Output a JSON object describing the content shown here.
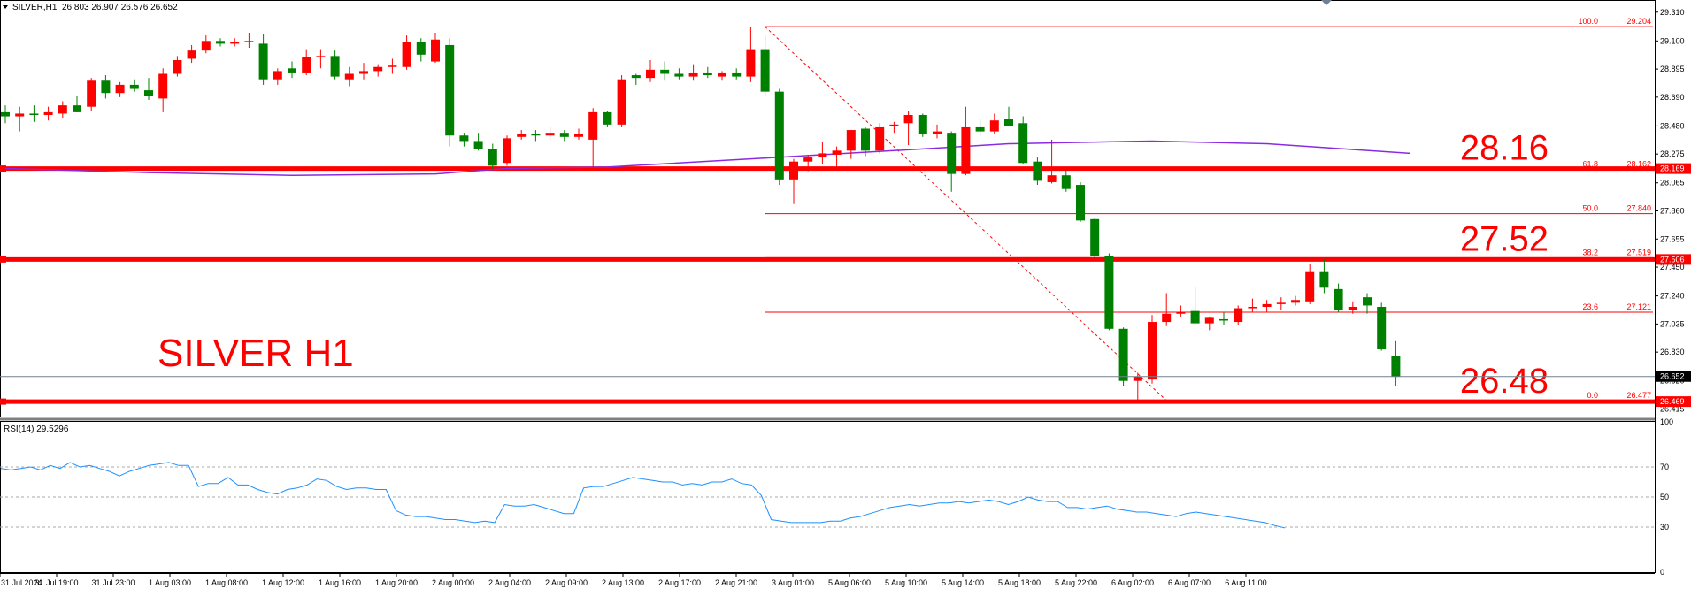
{
  "header": {
    "symbol_timeframe": "SILVER,H1",
    "ohlc": "26.803 26.907 26.576 26.652"
  },
  "watermark": "SILVER H1",
  "colors": {
    "bull": "#ff0000",
    "bear": "#008000",
    "ma": "#8a2be2",
    "level": "#ff0000",
    "fib": "#ff0000",
    "rsi": "#1e90ff",
    "current_price_line": "#708090",
    "axis_text": "#000000"
  },
  "chart_data": [
    {
      "type": "candlestick",
      "title": "SILVER,H1",
      "ylim": [
        26.36,
        29.36
      ],
      "y_ticks": [
        29.31,
        29.1,
        28.895,
        28.69,
        28.48,
        28.275,
        28.065,
        27.86,
        27.655,
        27.45,
        27.24,
        27.035,
        26.83,
        26.62,
        26.415
      ],
      "time_labels": [
        "31 Jul 2024",
        "31 Jul 19:00",
        "31 Jul 23:00",
        "1 Aug 03:00",
        "1 Aug 08:00",
        "1 Aug 12:00",
        "1 Aug 16:00",
        "1 Aug 20:00",
        "2 Aug 00:00",
        "2 Aug 04:00",
        "2 Aug 09:00",
        "2 Aug 13:00",
        "2 Aug 17:00",
        "2 Aug 21:00",
        "3 Aug 01:00",
        "5 Aug 06:00",
        "5 Aug 10:00",
        "5 Aug 14:00",
        "5 Aug 18:00",
        "5 Aug 22:00",
        "6 Aug 02:00",
        "6 Aug 07:00",
        "6 Aug 11:00"
      ],
      "candles": [
        {
          "o": 28.58,
          "h": 28.63,
          "l": 28.5,
          "c": 28.55
        },
        {
          "o": 28.55,
          "h": 28.62,
          "l": 28.44,
          "c": 28.57
        },
        {
          "o": 28.57,
          "h": 28.63,
          "l": 28.51,
          "c": 28.56
        },
        {
          "o": 28.56,
          "h": 28.62,
          "l": 28.52,
          "c": 28.58
        },
        {
          "o": 28.57,
          "h": 28.66,
          "l": 28.54,
          "c": 28.63
        },
        {
          "o": 28.63,
          "h": 28.7,
          "l": 28.58,
          "c": 28.58
        },
        {
          "o": 28.62,
          "h": 28.83,
          "l": 28.59,
          "c": 28.81
        },
        {
          "o": 28.81,
          "h": 28.85,
          "l": 28.68,
          "c": 28.72
        },
        {
          "o": 28.72,
          "h": 28.8,
          "l": 28.69,
          "c": 28.78
        },
        {
          "o": 28.78,
          "h": 28.82,
          "l": 28.73,
          "c": 28.75
        },
        {
          "o": 28.74,
          "h": 28.83,
          "l": 28.67,
          "c": 28.7
        },
        {
          "o": 28.68,
          "h": 28.9,
          "l": 28.58,
          "c": 28.86
        },
        {
          "o": 28.86,
          "h": 28.99,
          "l": 28.84,
          "c": 28.96
        },
        {
          "o": 28.97,
          "h": 29.07,
          "l": 28.94,
          "c": 29.03
        },
        {
          "o": 29.03,
          "h": 29.14,
          "l": 29.01,
          "c": 29.1
        },
        {
          "o": 29.1,
          "h": 29.12,
          "l": 29.06,
          "c": 29.08
        },
        {
          "o": 29.08,
          "h": 29.12,
          "l": 29.06,
          "c": 29.09
        },
        {
          "o": 29.1,
          "h": 29.16,
          "l": 29.05,
          "c": 29.1
        },
        {
          "o": 29.08,
          "h": 29.15,
          "l": 28.78,
          "c": 28.82
        },
        {
          "o": 28.82,
          "h": 28.9,
          "l": 28.78,
          "c": 28.88
        },
        {
          "o": 28.9,
          "h": 28.95,
          "l": 28.83,
          "c": 28.87
        },
        {
          "o": 28.87,
          "h": 29.04,
          "l": 28.85,
          "c": 28.98
        },
        {
          "o": 28.98,
          "h": 29.04,
          "l": 28.9,
          "c": 28.99
        },
        {
          "o": 28.99,
          "h": 29.03,
          "l": 28.82,
          "c": 28.84
        },
        {
          "o": 28.82,
          "h": 28.91,
          "l": 28.77,
          "c": 28.86
        },
        {
          "o": 28.86,
          "h": 28.94,
          "l": 28.82,
          "c": 28.88
        },
        {
          "o": 28.88,
          "h": 28.93,
          "l": 28.84,
          "c": 28.91
        },
        {
          "o": 28.91,
          "h": 28.97,
          "l": 28.86,
          "c": 28.92
        },
        {
          "o": 28.91,
          "h": 29.14,
          "l": 28.89,
          "c": 29.09
        },
        {
          "o": 29.09,
          "h": 29.12,
          "l": 28.95,
          "c": 29.0
        },
        {
          "o": 28.95,
          "h": 29.16,
          "l": 28.94,
          "c": 29.11
        },
        {
          "o": 29.07,
          "h": 29.12,
          "l": 28.33,
          "c": 28.41
        },
        {
          "o": 28.41,
          "h": 28.43,
          "l": 28.33,
          "c": 28.37
        },
        {
          "o": 28.37,
          "h": 28.43,
          "l": 28.3,
          "c": 28.31
        },
        {
          "o": 28.31,
          "h": 28.35,
          "l": 28.16,
          "c": 28.19
        },
        {
          "o": 28.21,
          "h": 28.41,
          "l": 28.19,
          "c": 28.39
        },
        {
          "o": 28.4,
          "h": 28.45,
          "l": 28.38,
          "c": 28.42
        },
        {
          "o": 28.42,
          "h": 28.45,
          "l": 28.37,
          "c": 28.41
        },
        {
          "o": 28.41,
          "h": 28.47,
          "l": 28.39,
          "c": 28.43
        },
        {
          "o": 28.43,
          "h": 28.45,
          "l": 28.37,
          "c": 28.4
        },
        {
          "o": 28.4,
          "h": 28.46,
          "l": 28.38,
          "c": 28.42
        },
        {
          "o": 28.38,
          "h": 28.61,
          "l": 28.17,
          "c": 28.58
        },
        {
          "o": 28.58,
          "h": 28.59,
          "l": 28.47,
          "c": 28.49
        },
        {
          "o": 28.49,
          "h": 28.85,
          "l": 28.47,
          "c": 28.82
        },
        {
          "o": 28.85,
          "h": 28.86,
          "l": 28.78,
          "c": 28.83
        },
        {
          "o": 28.83,
          "h": 28.96,
          "l": 28.8,
          "c": 28.89
        },
        {
          "o": 28.89,
          "h": 28.95,
          "l": 28.81,
          "c": 28.86
        },
        {
          "o": 28.86,
          "h": 28.9,
          "l": 28.82,
          "c": 28.84
        },
        {
          "o": 28.84,
          "h": 28.93,
          "l": 28.81,
          "c": 28.87
        },
        {
          "o": 28.87,
          "h": 28.91,
          "l": 28.83,
          "c": 28.85
        },
        {
          "o": 28.84,
          "h": 28.88,
          "l": 28.81,
          "c": 28.87
        },
        {
          "o": 28.87,
          "h": 28.9,
          "l": 28.82,
          "c": 28.84
        },
        {
          "o": 28.84,
          "h": 29.2,
          "l": 28.8,
          "c": 29.04
        },
        {
          "o": 29.04,
          "h": 29.14,
          "l": 28.7,
          "c": 28.73
        },
        {
          "o": 28.73,
          "h": 28.75,
          "l": 28.05,
          "c": 28.09
        },
        {
          "o": 28.09,
          "h": 28.24,
          "l": 27.91,
          "c": 28.22
        },
        {
          "o": 28.22,
          "h": 28.27,
          "l": 28.15,
          "c": 28.25
        },
        {
          "o": 28.25,
          "h": 28.36,
          "l": 28.2,
          "c": 28.28
        },
        {
          "o": 28.27,
          "h": 28.33,
          "l": 28.18,
          "c": 28.3
        },
        {
          "o": 28.3,
          "h": 28.43,
          "l": 28.24,
          "c": 28.45
        },
        {
          "o": 28.46,
          "h": 28.47,
          "l": 28.26,
          "c": 28.3
        },
        {
          "o": 28.3,
          "h": 28.5,
          "l": 28.28,
          "c": 28.47
        },
        {
          "o": 28.48,
          "h": 28.51,
          "l": 28.43,
          "c": 28.49
        },
        {
          "o": 28.5,
          "h": 28.59,
          "l": 28.34,
          "c": 28.56
        },
        {
          "o": 28.56,
          "h": 28.57,
          "l": 28.4,
          "c": 28.42
        },
        {
          "o": 28.42,
          "h": 28.49,
          "l": 28.39,
          "c": 28.44
        },
        {
          "o": 28.43,
          "h": 28.44,
          "l": 28.0,
          "c": 28.13
        },
        {
          "o": 28.13,
          "h": 28.62,
          "l": 28.12,
          "c": 28.47
        },
        {
          "o": 28.47,
          "h": 28.53,
          "l": 28.41,
          "c": 28.44
        },
        {
          "o": 28.44,
          "h": 28.57,
          "l": 28.42,
          "c": 28.52
        },
        {
          "o": 28.53,
          "h": 28.62,
          "l": 28.48,
          "c": 28.48
        },
        {
          "o": 28.5,
          "h": 28.55,
          "l": 28.2,
          "c": 28.21
        },
        {
          "o": 28.22,
          "h": 28.25,
          "l": 28.05,
          "c": 28.08
        },
        {
          "o": 28.07,
          "h": 28.38,
          "l": 28.06,
          "c": 28.12
        },
        {
          "o": 28.12,
          "h": 28.16,
          "l": 28.0,
          "c": 28.02
        },
        {
          "o": 28.05,
          "h": 28.07,
          "l": 27.78,
          "c": 27.79
        },
        {
          "o": 27.8,
          "h": 27.81,
          "l": 27.52,
          "c": 27.53
        },
        {
          "o": 27.53,
          "h": 27.55,
          "l": 26.99,
          "c": 27.0
        },
        {
          "o": 27.0,
          "h": 27.01,
          "l": 26.58,
          "c": 26.62
        },
        {
          "o": 26.62,
          "h": 26.68,
          "l": 26.48,
          "c": 26.65
        },
        {
          "o": 26.63,
          "h": 27.1,
          "l": 26.6,
          "c": 27.05
        },
        {
          "o": 27.05,
          "h": 27.26,
          "l": 27.02,
          "c": 27.11
        },
        {
          "o": 27.11,
          "h": 27.17,
          "l": 27.09,
          "c": 27.12
        },
        {
          "o": 27.13,
          "h": 27.31,
          "l": 27.05,
          "c": 27.04
        },
        {
          "o": 27.04,
          "h": 27.09,
          "l": 26.99,
          "c": 27.08
        },
        {
          "o": 27.07,
          "h": 27.12,
          "l": 27.03,
          "c": 27.06
        },
        {
          "o": 27.05,
          "h": 27.17,
          "l": 27.03,
          "c": 27.15
        },
        {
          "o": 27.15,
          "h": 27.22,
          "l": 27.12,
          "c": 27.16
        },
        {
          "o": 27.16,
          "h": 27.21,
          "l": 27.12,
          "c": 27.18
        },
        {
          "o": 27.18,
          "h": 27.23,
          "l": 27.14,
          "c": 27.19
        },
        {
          "o": 27.19,
          "h": 27.24,
          "l": 27.17,
          "c": 27.21
        },
        {
          "o": 27.2,
          "h": 27.47,
          "l": 27.18,
          "c": 27.42
        },
        {
          "o": 27.42,
          "h": 27.51,
          "l": 27.26,
          "c": 27.3
        },
        {
          "o": 27.29,
          "h": 27.33,
          "l": 27.12,
          "c": 27.14
        },
        {
          "o": 27.14,
          "h": 27.2,
          "l": 27.11,
          "c": 27.16
        },
        {
          "o": 27.23,
          "h": 27.26,
          "l": 27.11,
          "c": 27.17
        },
        {
          "o": 27.16,
          "h": 27.19,
          "l": 26.84,
          "c": 26.85
        },
        {
          "o": 26.8,
          "h": 26.91,
          "l": 26.58,
          "c": 26.65
        }
      ],
      "moving_average": [
        {
          "i": 0,
          "v": 28.17
        },
        {
          "i": 10,
          "v": 28.14
        },
        {
          "i": 20,
          "v": 28.12
        },
        {
          "i": 30,
          "v": 28.13
        },
        {
          "i": 35,
          "v": 28.17
        },
        {
          "i": 42,
          "v": 28.18
        },
        {
          "i": 52,
          "v": 28.24
        },
        {
          "i": 62,
          "v": 28.3
        },
        {
          "i": 70,
          "v": 28.35
        },
        {
          "i": 80,
          "v": 28.37
        },
        {
          "i": 88,
          "v": 28.35
        },
        {
          "i": 98,
          "v": 28.28
        }
      ],
      "horizontal_levels": [
        {
          "price": 28.169,
          "label": "28.16",
          "price_tag": "28.169"
        },
        {
          "price": 27.506,
          "label": "27.52",
          "price_tag": "27.506"
        },
        {
          "price": 26.469,
          "label": "26.48",
          "price_tag": "26.469"
        }
      ],
      "current_price": {
        "price": 26.652,
        "tag": "26.652"
      },
      "fibonacci": {
        "from_index": 53,
        "to_index": 81,
        "levels": [
          {
            "ratio": "100.0",
            "price": 29.204,
            "text": "29.204"
          },
          {
            "ratio": "61.8",
            "price": 28.162,
            "text": "28.162"
          },
          {
            "ratio": "50.0",
            "price": 27.84,
            "text": "27.840"
          },
          {
            "ratio": "38.2",
            "price": 27.519,
            "text": "27.519"
          },
          {
            "ratio": "23.6",
            "price": 27.121,
            "text": "27.121"
          },
          {
            "ratio": "0.0",
            "price": 26.477,
            "text": "26.477"
          }
        ]
      }
    },
    {
      "type": "line",
      "title": "RSI(14) 29.5296",
      "label": "RSI(14)",
      "value_text": "29.5296",
      "ylim": [
        0,
        100
      ],
      "y_ticks": [
        100,
        70,
        50,
        30,
        0
      ],
      "grid_levels": [
        70,
        50,
        30
      ],
      "values": [
        69,
        68,
        69,
        70,
        68,
        71,
        69,
        73,
        70,
        71,
        69,
        67,
        64,
        67,
        69,
        71,
        72,
        73,
        71,
        71,
        57,
        59,
        59,
        63,
        58,
        58,
        55,
        53,
        52,
        55,
        56,
        58,
        62,
        61,
        57,
        55,
        56,
        56,
        55,
        55,
        41,
        38,
        37,
        37,
        36,
        35,
        35,
        34,
        33,
        34,
        33,
        45,
        44,
        44,
        45,
        43,
        41,
        39,
        39,
        56,
        57,
        57,
        59,
        61,
        63,
        62,
        61,
        60,
        60,
        58,
        59,
        58,
        60,
        60,
        62,
        59,
        58,
        51,
        35,
        34,
        33,
        33,
        33,
        33,
        34,
        34,
        36,
        37,
        39,
        41,
        43,
        44,
        45,
        44,
        45,
        46,
        46,
        47,
        46,
        47,
        48,
        47,
        45,
        47,
        50,
        48,
        47,
        47,
        43,
        43,
        42,
        43,
        44,
        42,
        41,
        40,
        40,
        39,
        38,
        37,
        39,
        40,
        39,
        38,
        37,
        36,
        35,
        34,
        33,
        31,
        29.5
      ]
    }
  ]
}
